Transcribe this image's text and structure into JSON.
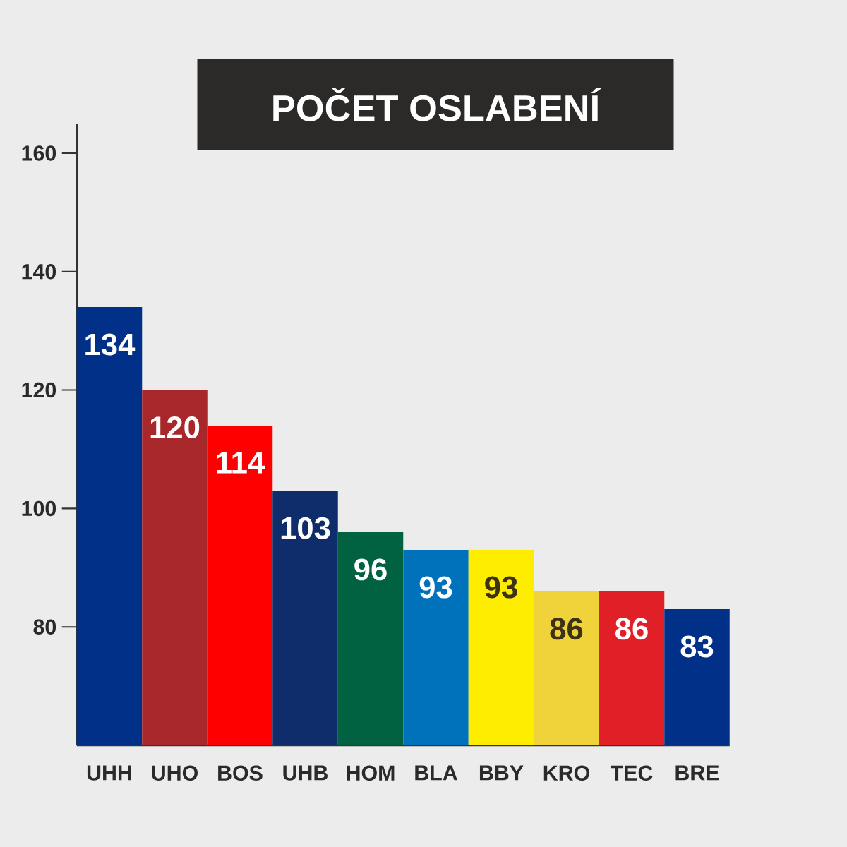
{
  "chart_data": {
    "type": "bar",
    "title": "POČET OSLABENÍ",
    "categories": [
      "UHH",
      "UHO",
      "BOS",
      "UHB",
      "HOM",
      "BLA",
      "BBY",
      "KRO",
      "TEC",
      "BRE"
    ],
    "values": [
      134,
      120,
      114,
      103,
      96,
      93,
      93,
      86,
      86,
      83
    ],
    "colors": [
      "#003087",
      "#a8272b",
      "#ff0000",
      "#0f2d6b",
      "#006241",
      "#0072bb",
      "#ffed00",
      "#f0d33a",
      "#e01f26",
      "#003087"
    ],
    "ylim": [
      60,
      165
    ],
    "yticks": [
      80,
      100,
      120,
      140,
      160
    ],
    "data_labels": true
  }
}
